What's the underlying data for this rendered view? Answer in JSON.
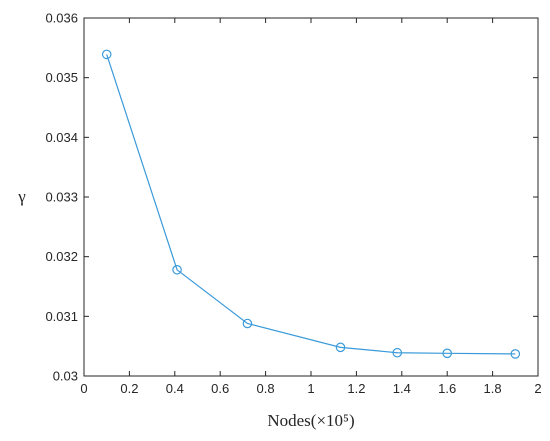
{
  "chart_data": {
    "type": "line",
    "xlabel": "Nodes(×10⁵)",
    "ylabel": "γ",
    "xlim": [
      0,
      2
    ],
    "ylim": [
      0.03,
      0.036
    ],
    "x_ticks": [
      "0",
      "0.2",
      "0.4",
      "0.6",
      "0.8",
      "1",
      "1.2",
      "1.4",
      "1.6",
      "1.8",
      "2"
    ],
    "y_ticks": [
      "0.03",
      "0.031",
      "0.032",
      "0.033",
      "0.034",
      "0.035",
      "0.036"
    ],
    "grid": false,
    "series": [
      {
        "color": "#3a9ad9",
        "marker": "circle",
        "x": [
          0.1,
          0.41,
          0.72,
          1.13,
          1.38,
          1.6,
          1.9
        ],
        "y": [
          0.03539,
          0.03178,
          0.03088,
          0.03048,
          0.03039,
          0.03038,
          0.03037
        ]
      }
    ]
  }
}
